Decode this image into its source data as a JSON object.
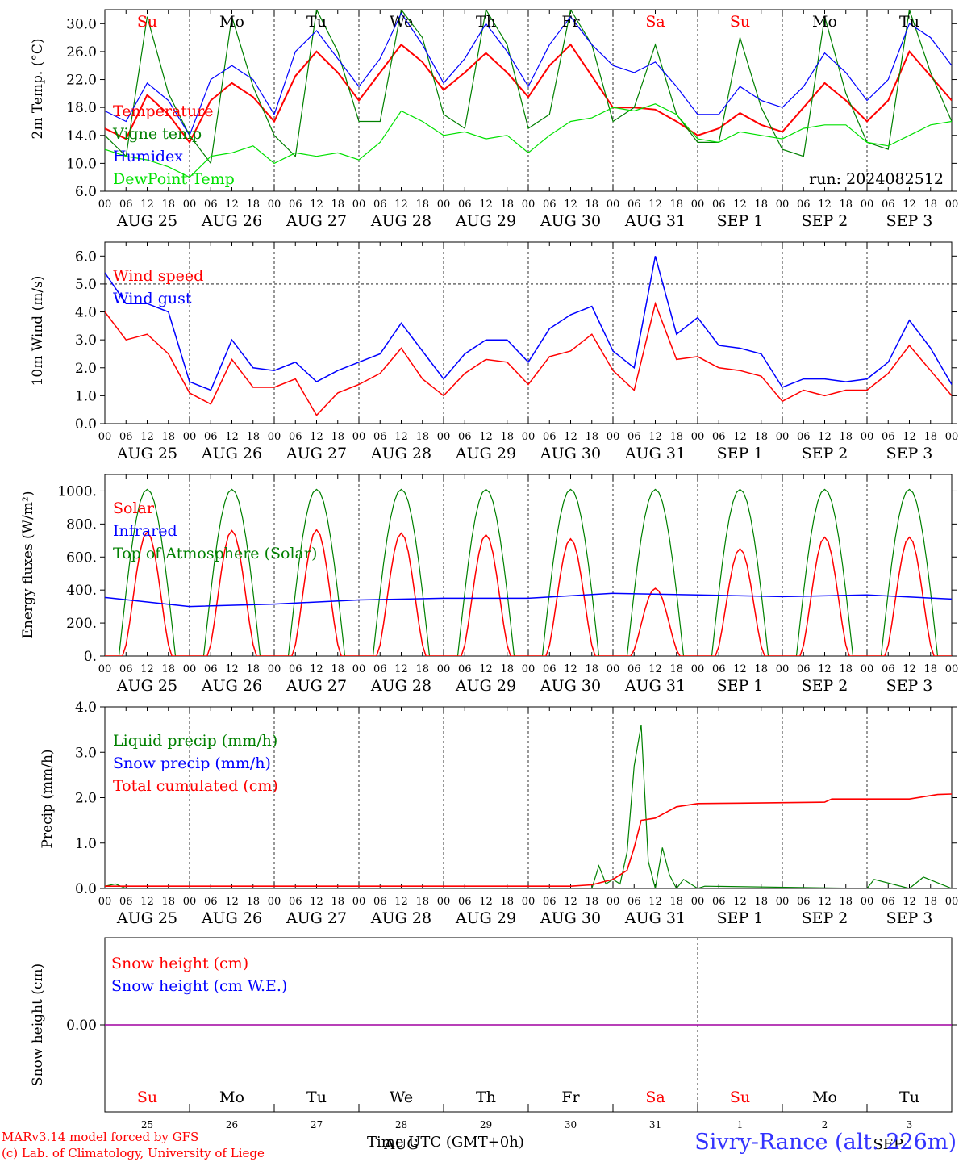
{
  "colors": {
    "red": "#ff0000",
    "green": "#008000",
    "blue": "#0000ff",
    "lime": "#00e000",
    "purple": "#a000a0",
    "dayred": "#ff0000",
    "black": "#000000"
  },
  "days": [
    {
      "name": "Su",
      "color": "#ff0000"
    },
    {
      "name": "Mo",
      "color": "#000000"
    },
    {
      "name": "Tu",
      "color": "#000000"
    },
    {
      "name": "We",
      "color": "#000000"
    },
    {
      "name": "Th",
      "color": "#000000"
    },
    {
      "name": "Fr",
      "color": "#000000"
    },
    {
      "name": "Sa",
      "color": "#ff0000"
    },
    {
      "name": "Su",
      "color": "#ff0000"
    },
    {
      "name": "Mo",
      "color": "#000000"
    },
    {
      "name": "Tu",
      "color": "#000000"
    }
  ],
  "dates": [
    "AUG 25",
    "AUG 26",
    "AUG 27",
    "AUG 28",
    "AUG 29",
    "AUG 30",
    "AUG 31",
    "SEP  1",
    "SEP  2",
    "SEP  3"
  ],
  "date_numbers": [
    "25",
    "26",
    "27",
    "28",
    "29",
    "30",
    "31",
    "1",
    "2",
    "3"
  ],
  "hour_ticks": [
    "00",
    "06",
    "12",
    "18"
  ],
  "hour_final": "00",
  "footer": {
    "model": "MARv3.14 model forced by GFS",
    "copyright": "(c) Lab. of Climatology, University of Liege",
    "location": "Sivry-Rance (alt. 226m)",
    "time_axis": "Time UTC (GMT+0h)",
    "overlap_month": "AUG",
    "overlap_month_2": "SEP"
  },
  "chart_data": [
    {
      "type": "line",
      "ylabel": "2m Temp. (°C)",
      "ylim": [
        6,
        32
      ],
      "yticks": [
        "6.0",
        "10.0",
        "14.0",
        "18.0",
        "22.0",
        "26.0",
        "30.0"
      ],
      "run": "run: 2024082512",
      "x_unit": "hours since AUG 25 00 UTC",
      "series": [
        {
          "name": "Temperature",
          "color": "#ff0000",
          "x": [
            0,
            6,
            12,
            18,
            24,
            30,
            36,
            42,
            48,
            54,
            60,
            66,
            72,
            78,
            84,
            90,
            96,
            102,
            108,
            114,
            120,
            126,
            132,
            138,
            144,
            150,
            156,
            162,
            168,
            174,
            180,
            186,
            192,
            198,
            204,
            210,
            216,
            222,
            228,
            234,
            240
          ],
          "y": [
            15,
            13.5,
            19.8,
            17,
            13,
            19,
            21.5,
            19.5,
            16,
            22.5,
            26,
            23,
            19,
            23,
            27,
            24.5,
            20.5,
            23,
            25.8,
            23,
            19.5,
            24,
            27,
            22.5,
            18,
            18,
            17.7,
            16,
            14,
            15,
            17.2,
            15.5,
            14.5,
            18,
            21.5,
            19,
            16,
            19,
            26,
            22.5,
            19
          ]
        },
        {
          "name": "Vigne temp",
          "color": "#008000",
          "x": [
            0,
            6,
            12,
            18,
            24,
            30,
            36,
            42,
            48,
            54,
            60,
            66,
            72,
            78,
            84,
            90,
            96,
            102,
            108,
            114,
            120,
            126,
            132,
            138,
            144,
            150,
            156,
            162,
            168,
            174,
            180,
            186,
            192,
            198,
            204,
            210,
            216,
            222,
            228,
            234,
            240
          ],
          "y": [
            14,
            11,
            31,
            20,
            14,
            10,
            31,
            21,
            14,
            11,
            32,
            26,
            16,
            16,
            32,
            28,
            17,
            15,
            32,
            27,
            15,
            17,
            32,
            27,
            16,
            18,
            27,
            17,
            13,
            13,
            28,
            18,
            12,
            11,
            31,
            20,
            13,
            12,
            32,
            23,
            16
          ]
        },
        {
          "name": "Humidex",
          "color": "#0000ff",
          "x": [
            0,
            6,
            12,
            18,
            24,
            30,
            36,
            42,
            48,
            54,
            60,
            66,
            72,
            78,
            84,
            90,
            96,
            102,
            108,
            114,
            120,
            126,
            132,
            138,
            144,
            150,
            156,
            162,
            168,
            174,
            180,
            186,
            192,
            198,
            204,
            210,
            216,
            222,
            228,
            234,
            240
          ],
          "y": [
            17.5,
            16,
            21.5,
            19,
            14,
            22,
            24,
            22,
            17,
            26,
            29,
            25,
            21,
            25,
            31.5,
            27,
            21.5,
            25,
            30,
            26,
            21,
            27,
            31,
            27,
            24,
            23,
            24.5,
            21,
            17,
            17,
            21,
            19,
            18,
            21,
            25.8,
            23,
            19,
            22,
            30,
            28,
            24
          ]
        },
        {
          "name": "DewPoint Temp",
          "color": "#00e000",
          "x": [
            0,
            6,
            12,
            18,
            24,
            30,
            36,
            42,
            48,
            54,
            60,
            66,
            72,
            78,
            84,
            90,
            96,
            102,
            108,
            114,
            120,
            126,
            132,
            138,
            144,
            150,
            156,
            162,
            168,
            174,
            180,
            186,
            192,
            198,
            204,
            210,
            216,
            222,
            228,
            234,
            240
          ],
          "y": [
            12,
            11,
            10.5,
            9.5,
            8,
            11,
            11.5,
            12.5,
            10,
            11.5,
            11,
            11.5,
            10.5,
            13,
            17.5,
            16,
            14,
            14.5,
            13.5,
            14,
            11.5,
            14,
            16,
            16.5,
            18,
            17.5,
            18.5,
            17,
            13.5,
            13,
            14.5,
            14,
            13.5,
            15,
            15.5,
            15.5,
            13,
            12.5,
            14,
            15.5,
            16
          ]
        }
      ]
    },
    {
      "type": "line",
      "ylabel": "10m Wind (m/s)",
      "ylim": [
        0,
        6.5
      ],
      "yticks": [
        "0.0",
        "1.0",
        "2.0",
        "3.0",
        "4.0",
        "5.0",
        "6.0"
      ],
      "x_unit": "hours since AUG 25 00 UTC",
      "series": [
        {
          "name": "Wind speed",
          "color": "#ff0000",
          "x": [
            0,
            6,
            12,
            18,
            24,
            30,
            36,
            42,
            48,
            54,
            60,
            66,
            72,
            78,
            84,
            90,
            96,
            102,
            108,
            114,
            120,
            126,
            132,
            138,
            144,
            150,
            156,
            162,
            168,
            174,
            180,
            186,
            192,
            198,
            204,
            210,
            216,
            222,
            228,
            234,
            240
          ],
          "y": [
            4,
            3,
            3.2,
            2.5,
            1.1,
            0.7,
            2.3,
            1.3,
            1.3,
            1.6,
            0.3,
            1.1,
            1.4,
            1.8,
            2.7,
            1.6,
            1.0,
            1.8,
            2.3,
            2.2,
            1.4,
            2.4,
            2.6,
            3.2,
            1.9,
            1.2,
            4.3,
            2.3,
            2.4,
            2.0,
            1.9,
            1.7,
            0.8,
            1.2,
            1.0,
            1.2,
            1.2,
            1.8,
            2.8,
            1.9,
            1.0
          ]
        },
        {
          "name": "Wind gust",
          "color": "#0000ff",
          "x": [
            0,
            6,
            12,
            18,
            24,
            30,
            36,
            42,
            48,
            54,
            60,
            66,
            72,
            78,
            84,
            90,
            96,
            102,
            108,
            114,
            120,
            126,
            132,
            138,
            144,
            150,
            156,
            162,
            168,
            174,
            180,
            186,
            192,
            198,
            204,
            210,
            216,
            222,
            228,
            234,
            240
          ],
          "y": [
            5.4,
            4.3,
            4.3,
            4.0,
            1.5,
            1.2,
            3.0,
            2.0,
            1.9,
            2.2,
            1.5,
            1.9,
            2.2,
            2.5,
            3.6,
            2.6,
            1.6,
            2.5,
            3.0,
            3.0,
            2.2,
            3.4,
            3.9,
            4.2,
            2.6,
            2.0,
            6.0,
            3.2,
            3.8,
            2.8,
            2.7,
            2.5,
            1.3,
            1.6,
            1.6,
            1.5,
            1.6,
            2.2,
            3.7,
            2.7,
            1.4
          ]
        }
      ],
      "hline": 5.0
    },
    {
      "type": "line",
      "ylabel": "Energy fluxes (W/m²)",
      "ylim": [
        0,
        1100
      ],
      "yticks": [
        "0.",
        "200.",
        "400.",
        "600.",
        "800.",
        "1000."
      ],
      "x_unit": "hours since AUG 25 00 UTC",
      "toa_peak": 1010,
      "series": [
        {
          "name": "Solar",
          "color": "#ff0000",
          "peaks": [
            750,
            760,
            765,
            745,
            735,
            710,
            410,
            650,
            720,
            720
          ]
        },
        {
          "name": "Infrared",
          "color": "#0000ff",
          "x": [
            0,
            24,
            48,
            72,
            96,
            120,
            144,
            168,
            192,
            216,
            240
          ],
          "y": [
            355,
            300,
            315,
            340,
            350,
            350,
            380,
            370,
            360,
            370,
            345
          ]
        },
        {
          "name": "Top of Atmosphere (Solar)",
          "color": "#008000"
        }
      ]
    },
    {
      "type": "line",
      "ylabel": "Precip (mm/h)",
      "ylim": [
        0,
        4.0
      ],
      "yticks": [
        "0.0",
        "1.0",
        "2.0",
        "3.0",
        "4.0"
      ],
      "x_unit": "hours since AUG 25 00 UTC",
      "series": [
        {
          "name": "Liquid precip (mm/h)",
          "color": "#008000",
          "x": [
            0,
            3,
            6,
            138,
            140,
            142,
            144,
            146,
            148,
            150,
            152,
            154,
            156,
            158,
            160,
            162,
            164,
            168,
            170,
            216,
            218,
            228,
            232,
            240
          ],
          "y": [
            0.05,
            0.1,
            0,
            0,
            0.5,
            0.1,
            0.2,
            0.1,
            0.8,
            2.7,
            3.6,
            0.6,
            0,
            0.9,
            0.3,
            0,
            0.2,
            0,
            0.05,
            0,
            0.2,
            0,
            0.25,
            0
          ]
        },
        {
          "name": "Snow precip (mm/h)",
          "color": "#0000ff",
          "x": [
            0,
            240
          ],
          "y": [
            0,
            0
          ]
        },
        {
          "name": "Total cumulated (cm)",
          "color": "#ff0000",
          "x": [
            0,
            132,
            138,
            144,
            148,
            150,
            152,
            156,
            162,
            168,
            180,
            204,
            206,
            228,
            236,
            240
          ],
          "y": [
            0.05,
            0.05,
            0.08,
            0.2,
            0.4,
            0.9,
            1.5,
            1.55,
            1.8,
            1.87,
            1.88,
            1.9,
            1.97,
            1.97,
            2.07,
            2.08
          ]
        }
      ]
    },
    {
      "type": "line",
      "ylabel": "Snow height (cm)",
      "yticks": [
        "0.00"
      ],
      "series": [
        {
          "name": "Snow height (cm)",
          "color": "#ff0000",
          "x": [
            0,
            240
          ],
          "y": [
            0,
            0
          ]
        },
        {
          "name": "Snow height (cm W.E.)",
          "color": "#0000ff",
          "x": [
            0,
            240
          ],
          "y": [
            0,
            0
          ]
        }
      ]
    }
  ]
}
